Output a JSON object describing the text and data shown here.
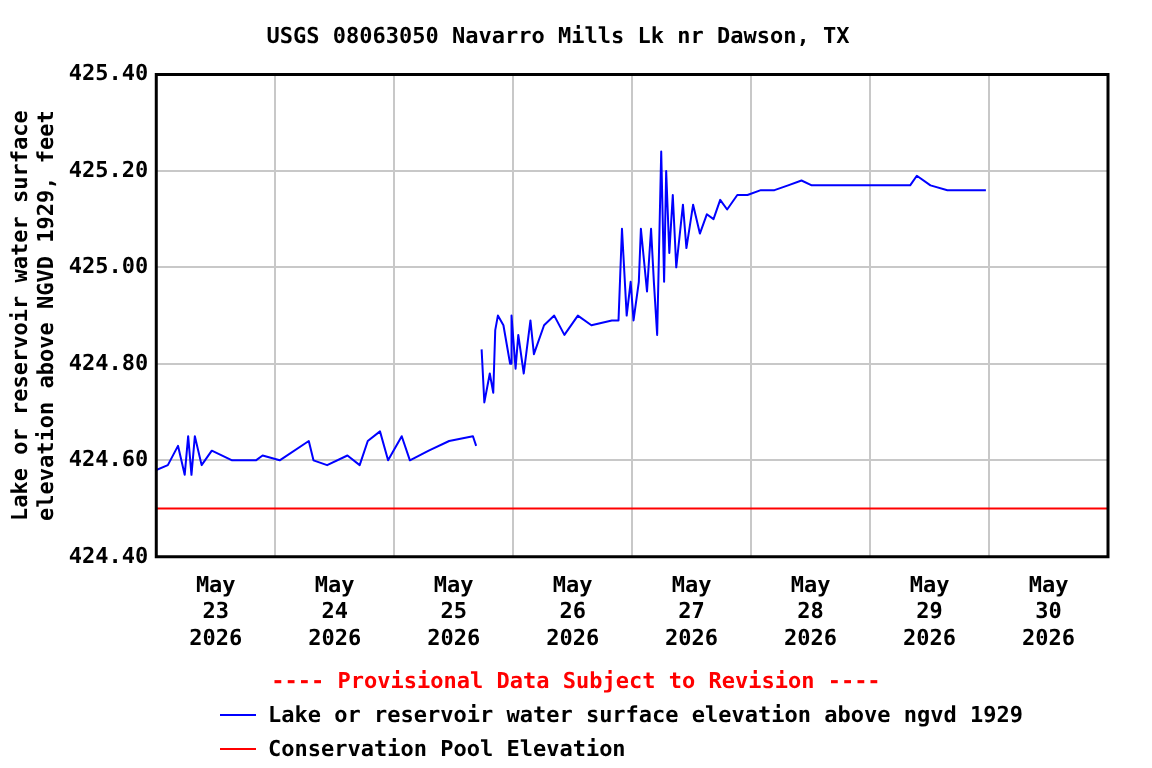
{
  "chart_data": {
    "type": "line",
    "title": "USGS 08063050 Navarro Mills Lk nr Dawson, TX",
    "ylabel": "Lake or reservoir water surface elevation above NGVD 1929, feet",
    "annotations": [
      "---- Provisional Data Subject to Revision ----"
    ],
    "xlim": [
      "2026-05-23",
      "2026-05-31"
    ],
    "xticks": [
      {
        "value": "2026-05-23T12:00",
        "label": "May 23 2026"
      },
      {
        "value": "2026-05-24",
        "label": null
      },
      {
        "value": "2026-05-24T12:00",
        "label": "May 24 2026"
      },
      {
        "value": "2026-05-25",
        "label": null
      },
      {
        "value": "2026-05-25T12:00",
        "label": "May 25 2026"
      },
      {
        "value": "2026-05-26",
        "label": null
      },
      {
        "value": "2026-05-26T12:00",
        "label": "May 26 2026"
      },
      {
        "value": "2026-05-27",
        "label": null
      },
      {
        "value": "2026-05-27T12:00",
        "label": "May 27 2026"
      },
      {
        "value": "2026-05-28",
        "label": null
      },
      {
        "value": "2026-05-28T12:00",
        "label": "May 28 2026"
      },
      {
        "value": "2026-05-29",
        "label": null
      },
      {
        "value": "2026-05-29T12:00",
        "label": "May 29 2026"
      },
      {
        "value": "2026-05-30",
        "label": null
      },
      {
        "value": "2026-05-30T12:00",
        "label": "May 30 2026"
      }
    ],
    "ylim": [
      424.4,
      425.4
    ],
    "yticks": [
      {
        "value": 424.4,
        "label": "424.40"
      },
      {
        "value": 424.6,
        "label": "424.60"
      },
      {
        "value": 424.8,
        "label": "424.80"
      },
      {
        "value": 425.0,
        "label": "425.00"
      },
      {
        "value": 425.2,
        "label": "425.20"
      },
      {
        "value": 425.4,
        "label": "425.40"
      }
    ],
    "grid": true,
    "legend": "bottom",
    "marker": "none",
    "line_style": "solid",
    "series": [
      {
        "name": "Lake or reservoir water surface elevation above ngvd 1929",
        "color": "#0000ff",
        "x": [
          "2026-05-23T00:00",
          "2026-05-23T02:20",
          "2026-05-23T04:23",
          "2026-05-23T05:44",
          "2026-05-23T06:26",
          "2026-05-23T07:06",
          "2026-05-23T07:47",
          "2026-05-23T09:09",
          "2026-05-23T11:12",
          "2026-05-23T15:18",
          "2026-05-23T20:06",
          "2026-05-23T21:27",
          "2026-05-24T00:54",
          "2026-05-24T06:46",
          "2026-05-24T07:43",
          "2026-05-24T10:28",
          "2026-05-24T14:34",
          "2026-05-24T17:02",
          "2026-05-24T18:40",
          "2026-05-24T21:08",
          "2026-05-24T22:46",
          "2026-05-25T01:31",
          "2026-05-25T03:10",
          "2026-05-25T06:58",
          "2026-05-25T11:05",
          "2026-05-25T15:53",
          "2026-05-25T16:32",
          "2026-05-25T17:14",
          "2026-05-25T17:38",
          "2026-05-25T18:11",
          "2026-05-25T19:17",
          "2026-05-25T19:59",
          "2026-05-25T20:23",
          "2026-05-25T20:55",
          "2026-05-25T22:02",
          "2026-05-25T23:23",
          "2026-05-25T23:40",
          "2026-05-26T00:29",
          "2026-05-26T01:02",
          "2026-05-26T02:08",
          "2026-05-26T03:29",
          "2026-05-26T04:11",
          "2026-05-26T06:14",
          "2026-05-26T08:17",
          "2026-05-26T10:20",
          "2026-05-26T13:03",
          "2026-05-26T15:47",
          "2026-05-26T19:54",
          "2026-05-26T21:15",
          "2026-05-26T21:57",
          "2026-05-26T22:54",
          "2026-05-26T23:42",
          "2026-05-27T00:17",
          "2026-05-27T01:21",
          "2026-05-27T01:46",
          "2026-05-27T03:00",
          "2026-05-27T03:49",
          "2026-05-27T04:23",
          "2026-05-27T05:03",
          "2026-05-27T05:52",
          "2026-05-27T06:27",
          "2026-05-27T06:52",
          "2026-05-27T07:30",
          "2026-05-27T08:12",
          "2026-05-27T08:54",
          "2026-05-27T10:15",
          "2026-05-27T10:57",
          "2026-05-27T12:18",
          "2026-05-27T13:40",
          "2026-05-27T15:04",
          "2026-05-27T16:25",
          "2026-05-27T17:46",
          "2026-05-27T19:10",
          "2026-05-27T21:13",
          "2026-05-27T23:16",
          "2026-05-28T01:58",
          "2026-05-28T04:43",
          "2026-05-28T07:28",
          "2026-05-28T10:10",
          "2026-05-28T12:14",
          "2026-05-28T14:17",
          "2026-05-28T19:47",
          "2026-05-29T02:36",
          "2026-05-29T08:05",
          "2026-05-29T09:26",
          "2026-05-29T12:11",
          "2026-05-29T15:36",
          "2026-05-29T23:22"
        ],
        "values": [
          424.58,
          424.59,
          424.63,
          424.57,
          424.65,
          424.57,
          424.65,
          424.59,
          424.62,
          424.6,
          424.6,
          424.61,
          424.6,
          424.64,
          424.6,
          424.59,
          424.61,
          424.59,
          424.64,
          424.66,
          424.6,
          424.65,
          424.6,
          424.62,
          424.64,
          424.65,
          424.63,
          null,
          424.83,
          424.72,
          424.78,
          424.74,
          424.87,
          424.9,
          424.88,
          424.8,
          424.9,
          424.79,
          424.86,
          424.78,
          424.89,
          424.82,
          424.88,
          424.9,
          424.86,
          424.9,
          424.88,
          424.89,
          424.89,
          425.08,
          424.9,
          424.97,
          424.89,
          424.97,
          425.08,
          424.95,
          425.08,
          424.97,
          424.86,
          425.24,
          424.97,
          425.2,
          425.03,
          425.15,
          425.0,
          425.13,
          425.04,
          425.13,
          425.07,
          425.11,
          425.1,
          425.14,
          425.12,
          425.15,
          425.15,
          425.16,
          425.16,
          425.17,
          425.18,
          425.17,
          425.17,
          425.17,
          425.17,
          425.17,
          425.19,
          425.17,
          425.16,
          425.16
        ]
      },
      {
        "name": "Conservation Pool Elevation",
        "color": "#ff0000",
        "x": [
          "2026-05-23",
          "2026-05-31"
        ],
        "values": [
          424.5,
          424.5
        ]
      }
    ]
  }
}
